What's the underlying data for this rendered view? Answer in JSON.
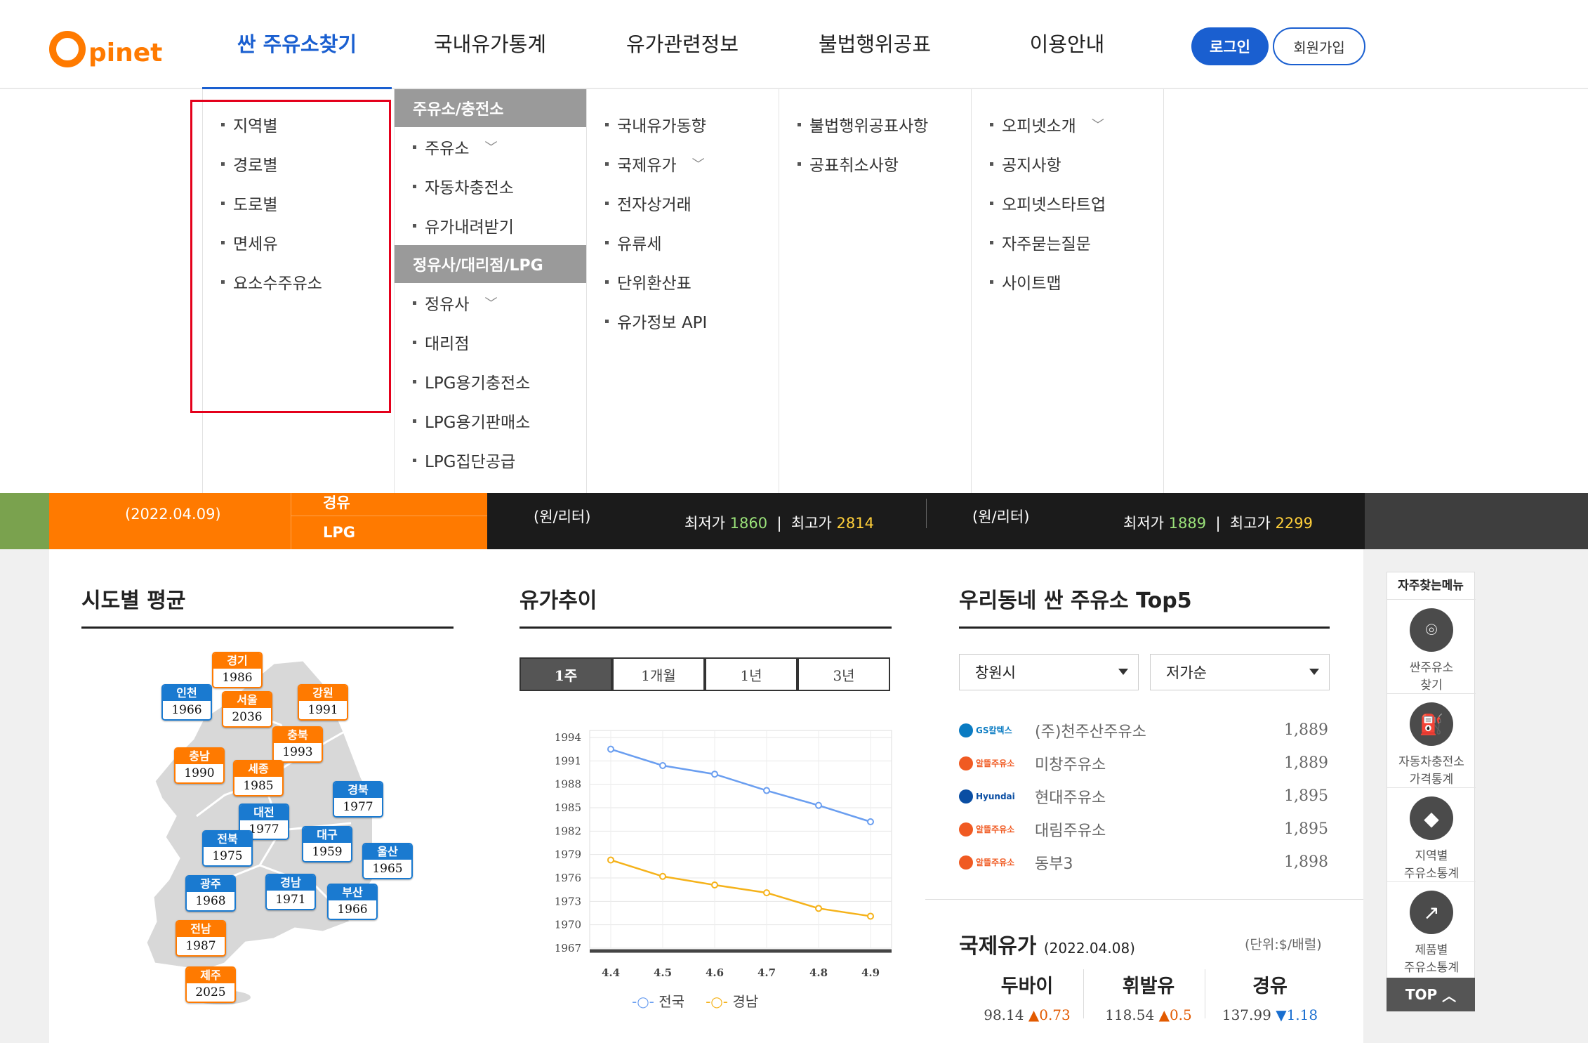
{
  "header": {
    "logo": {
      "letter": "O",
      "text": "pinet"
    },
    "nav": [
      "싼 주유소찾기",
      "국내유가통계",
      "유가관련정보",
      "불법행위공표",
      "이용안내"
    ],
    "login_label": "로그인",
    "join_label": "회원가입"
  },
  "mega_menu": {
    "col1": [
      "지역별",
      "경로별",
      "도로별",
      "면세유",
      "요소수주유소"
    ],
    "col2_head1": "주유소/충전소",
    "col2_group1": [
      "주유소",
      "자동차충전소",
      "유가내려받기"
    ],
    "col2_head2": "정유사/대리점/LPG",
    "col2_group2": [
      "정유사",
      "대리점",
      "LPG용기충전소",
      "LPG용기판매소",
      "LPG집단공급"
    ],
    "col3": [
      "국내유가동향",
      "국제유가",
      "전자상거래",
      "유류세",
      "단위환산표",
      "유가정보 API"
    ],
    "col4": [
      "불법행위공표사항",
      "공표취소사항"
    ],
    "col5": [
      "오피넷소개",
      "공지사항",
      "오피넷스타트업",
      "자주묻는질문",
      "사이트맵"
    ]
  },
  "banner": {
    "date": "(2022.04.09)",
    "fuel_tabs": [
      "경유",
      "LPG"
    ],
    "unit1": "(원/리터)",
    "min1_label": "최저가",
    "min1": "1860",
    "max1_label": "최고가",
    "max1": "2814",
    "unit2": "(원/리터)",
    "min2_label": "최저가",
    "min2": "1889",
    "max2_label": "최고가",
    "max2": "2299"
  },
  "regional": {
    "title": "시도별 평균",
    "badges": [
      {
        "name": "경기",
        "value": "1986",
        "color": "o"
      },
      {
        "name": "인천",
        "value": "1966",
        "color": "b"
      },
      {
        "name": "서울",
        "value": "2036",
        "color": "o"
      },
      {
        "name": "강원",
        "value": "1991",
        "color": "o"
      },
      {
        "name": "충북",
        "value": "1993",
        "color": "o"
      },
      {
        "name": "충남",
        "value": "1990",
        "color": "o"
      },
      {
        "name": "세종",
        "value": "1985",
        "color": "o"
      },
      {
        "name": "경북",
        "value": "1977",
        "color": "b"
      },
      {
        "name": "대전",
        "value": "1977",
        "color": "b"
      },
      {
        "name": "대구",
        "value": "1959",
        "color": "b"
      },
      {
        "name": "전북",
        "value": "1975",
        "color": "b"
      },
      {
        "name": "울산",
        "value": "1965",
        "color": "b"
      },
      {
        "name": "광주",
        "value": "1968",
        "color": "b"
      },
      {
        "name": "경남",
        "value": "1971",
        "color": "b"
      },
      {
        "name": "부산",
        "value": "1966",
        "color": "b"
      },
      {
        "name": "전남",
        "value": "1987",
        "color": "o"
      },
      {
        "name": "제주",
        "value": "2025",
        "color": "o"
      }
    ]
  },
  "trend": {
    "title": "유가추이",
    "tabs": [
      "1주",
      "1개월",
      "1년",
      "3년"
    ],
    "legend": [
      "전국",
      "경남"
    ]
  },
  "chart_data": {
    "type": "line",
    "x": [
      "4.4",
      "4.5",
      "4.6",
      "4.7",
      "4.8",
      "4.9"
    ],
    "series": [
      {
        "name": "전국",
        "values": [
          1992.5,
          1990.4,
          1989.3,
          1987.2,
          1985.3,
          1983.2
        ],
        "color": "#6a9ef0"
      },
      {
        "name": "경남",
        "values": [
          1978.3,
          1976.2,
          1975.1,
          1974.1,
          1972.1,
          1971.1
        ],
        "color": "#f5b21a"
      }
    ],
    "yticks": [
      1967,
      1970,
      1973,
      1976,
      1979,
      1982,
      1985,
      1988,
      1991,
      1994
    ],
    "ylim": [
      1967,
      1994
    ],
    "grid": true
  },
  "top5": {
    "title": "우리동네 싼 주유소 Top5",
    "region_select": "창원시",
    "sort_select": "저가순",
    "rows": [
      {
        "brand": "GS칼텍스",
        "brand_color": "#0a7bc2",
        "name": "(주)천주산주유소",
        "price": "1,889"
      },
      {
        "brand": "알뜰주유소",
        "brand_color": "#f05a22",
        "name": "미창주유소",
        "price": "1,889"
      },
      {
        "brand": "Hyundai Oilbank",
        "brand_color": "#0a4ea3",
        "name": "현대주유소",
        "price": "1,895"
      },
      {
        "brand": "알뜰주유소",
        "brand_color": "#f05a22",
        "name": "대림주유소",
        "price": "1,895"
      },
      {
        "brand": "알뜰주유소",
        "brand_color": "#f05a22",
        "name": "동부3",
        "price": "1,898"
      }
    ]
  },
  "intl": {
    "title": "국제유가",
    "date": "(2022.04.08)",
    "unit": "(단위:$/배럴)",
    "items": [
      {
        "name": "두바이",
        "value": "98.14",
        "dir": "▲",
        "change": "0.73",
        "cls": "up"
      },
      {
        "name": "휘발유",
        "value": "118.54",
        "dir": "▲",
        "change": "0.5",
        "cls": "up"
      },
      {
        "name": "경유",
        "value": "137.99",
        "dir": "▼",
        "change": "1.18",
        "cls": "down"
      }
    ]
  },
  "quick": {
    "title": "자주찾는메뉴",
    "items": [
      {
        "label1": "싼주유소",
        "label2": "찾기",
        "icon": "pin-icon"
      },
      {
        "label1": "자동차충전소",
        "label2": "가격통계",
        "icon": "charger-icon"
      },
      {
        "label1": "지역별",
        "label2": "주유소통계",
        "icon": "korea-map-icon"
      },
      {
        "label1": "제품별",
        "label2": "주유소통계",
        "icon": "chart-icon"
      }
    ],
    "top_label": "TOP"
  }
}
